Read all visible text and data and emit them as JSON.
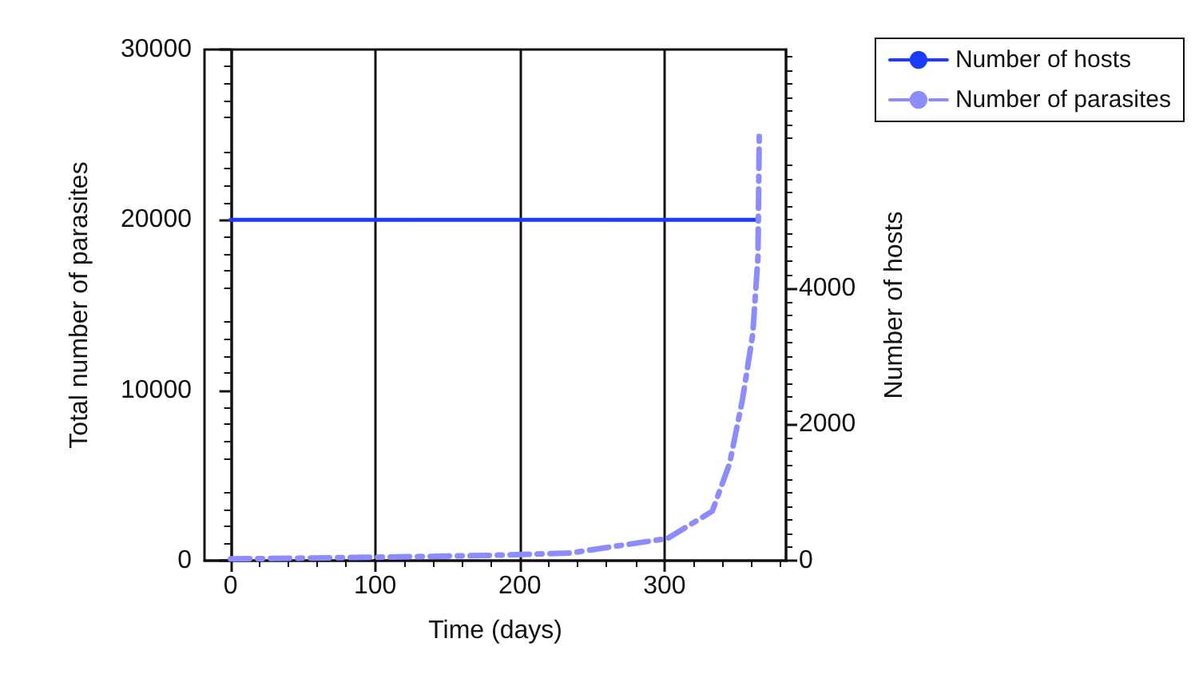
{
  "chart_data": {
    "type": "line",
    "xlabel": "Time (days)",
    "ylabel": "Total number of parasites",
    "y2label": "Number of hosts",
    "xlim": [
      -18,
      384
    ],
    "xticks": [
      0,
      100,
      200,
      300
    ],
    "ylim": [
      0,
      30000
    ],
    "yticks": [
      0,
      10000,
      20000,
      30000
    ],
    "y2lim": [
      0,
      7500
    ],
    "y2ticks": [
      0,
      2000,
      4000
    ],
    "grid": "x",
    "legend": "top right",
    "marker": "none",
    "series": [
      {
        "name": "Number of hosts",
        "color": "#1a3cff",
        "axis": "y2",
        "line_style": "solid",
        "x": [
          0,
          365
        ],
        "values": [
          5000,
          5000
        ]
      },
      {
        "name": "Number of parasites",
        "color": "#8c8cff",
        "line_style": "dashdot",
        "x": [
          0,
          100,
          175,
          235,
          302,
          333,
          345,
          354,
          361,
          364.6,
          365.5
        ],
        "values": [
          100,
          200,
          300,
          450,
          1300,
          2900,
          5700,
          9500,
          13300,
          17800,
          25000
        ]
      }
    ]
  }
}
